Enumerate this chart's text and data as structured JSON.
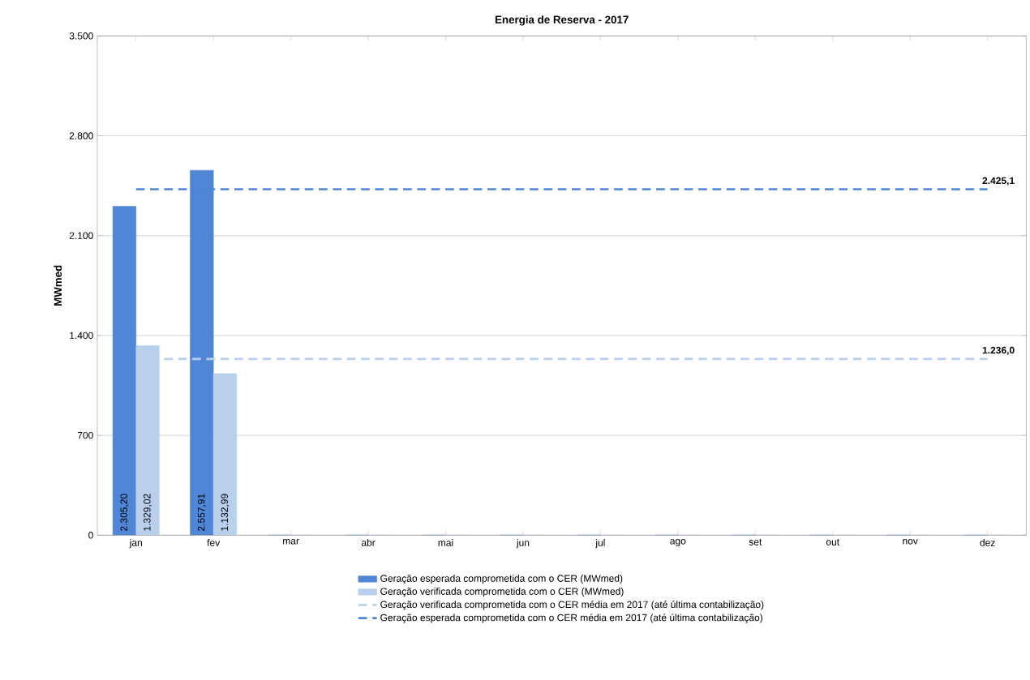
{
  "chart_data": {
    "type": "bar",
    "title": "Energia de Reserva - 2017",
    "ylabel": "MWmed",
    "categories": [
      "jan",
      "fev",
      "mar",
      "abr",
      "mai",
      "jun",
      "jul",
      "ago",
      "set",
      "out",
      "nov",
      "dez"
    ],
    "series": [
      {
        "name": "Geração esperada comprometida com o CER (MWmed)",
        "color": "#4f86d6",
        "values": [
          2305.2,
          2557.91,
          0,
          0,
          0,
          0,
          0,
          0,
          0,
          0,
          0,
          0
        ],
        "value_labels": [
          "2.305,20",
          "2.557,91",
          null,
          null,
          null,
          null,
          null,
          null,
          null,
          null,
          null,
          null
        ]
      },
      {
        "name": "Geração verificada comprometida com o CER (MWmed)",
        "color": "#b8d0ec",
        "values": [
          1329.02,
          1132.99,
          0,
          0,
          0,
          0,
          0,
          0,
          0,
          0,
          0,
          0
        ],
        "value_labels": [
          "1.329,02",
          "1.132,99",
          null,
          null,
          null,
          null,
          null,
          null,
          null,
          null,
          null,
          null
        ]
      },
      {
        "type": "line",
        "line_style": "dashed",
        "name": "Geração verificada comprometida com o CER média em 2017 (até última contabilização)",
        "color": "#b8d0ec",
        "values": [
          1236.0,
          1236.0,
          1236.0,
          1236.0,
          1236.0,
          1236.0,
          1236.0,
          1236.0,
          1236.0,
          1236.0,
          1236.0,
          1236.0
        ],
        "value_labels": [
          null,
          null,
          null,
          null,
          null,
          null,
          null,
          null,
          null,
          null,
          null,
          "1.236,0"
        ]
      },
      {
        "type": "line",
        "line_style": "dashed",
        "name": "Geração esperada comprometida com o CER média em 2017 (até última contabilização)",
        "color": "#4f86d6",
        "values": [
          2425.1,
          2425.1,
          2425.1,
          2425.1,
          2425.1,
          2425.1,
          2425.1,
          2425.1,
          2425.1,
          2425.1,
          2425.1,
          2425.1
        ],
        "value_labels": [
          null,
          null,
          null,
          null,
          null,
          null,
          null,
          null,
          null,
          null,
          null,
          "2.425,1"
        ]
      }
    ],
    "ylim": [
      0,
      3500
    ],
    "yticks": [
      {
        "value": 0,
        "label": "0"
      },
      {
        "value": 700,
        "label": "700"
      },
      {
        "value": 1400,
        "label": "1.400"
      },
      {
        "value": 2100,
        "label": "2.100"
      },
      {
        "value": 2800,
        "label": "2.800"
      },
      {
        "value": 3500,
        "label": "3.500"
      }
    ],
    "grid": "y",
    "legend": "bottom"
  }
}
